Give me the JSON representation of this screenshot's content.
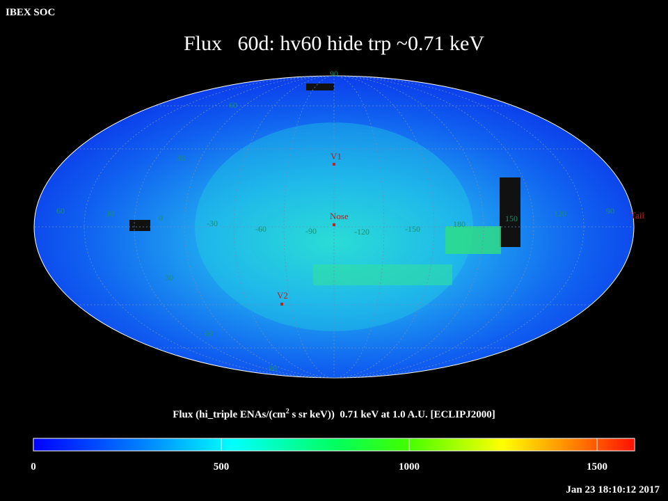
{
  "header": {
    "org": "IBEX SOC",
    "title": "Flux   60d: hv60 hide trp ~0.71 keV"
  },
  "map": {
    "grid_labels": [
      "90",
      "60",
      "30",
      "60",
      "30",
      "0",
      "-30",
      "-60",
      "-90",
      "-120",
      "-150",
      "180",
      "150",
      "120",
      "90",
      "30",
      "60",
      "90"
    ],
    "markers": [
      "V1",
      "Nose",
      "V2",
      "Tail"
    ]
  },
  "colorbar": {
    "label_parts": [
      "Flux (hi_triple ENAs/(cm",
      "2",
      " s sr keV))  0.71 keV at 1.0 A.U. [ECLIPJ2000]"
    ],
    "range": [
      0,
      1600
    ],
    "ticks": [
      0,
      500,
      1000,
      1500
    ]
  },
  "footer": {
    "timestamp": "Jan 23 18:10:12 2017"
  }
}
